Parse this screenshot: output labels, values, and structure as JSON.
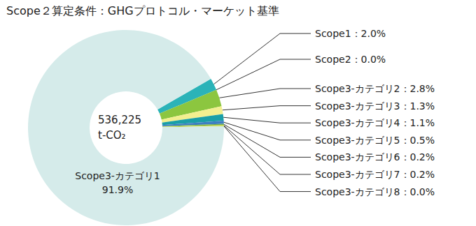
{
  "chart_data": {
    "type": "pie",
    "title": "Scope２算定条件：GHGプロトコル・マーケット基準",
    "center_text": [
      "536,225",
      "t-CO₂"
    ],
    "categories": [
      "Scope1",
      "Scope2",
      "Scope3-カテゴリ2",
      "Scope3-カテゴリ3",
      "Scope3-カテゴリ4",
      "Scope3-カテゴリ5",
      "Scope3-カテゴリ6",
      "Scope3-カテゴリ7",
      "Scope3-カテゴリ8",
      "Scope3-カテゴリ1"
    ],
    "values": [
      2.0,
      0.0,
      2.8,
      1.3,
      1.1,
      0.5,
      0.2,
      0.2,
      0.0,
      91.9
    ],
    "value_labels": [
      "Scope1：2.0%",
      "Scope2：0.0%",
      "Scope3-カテゴリ2：2.8%",
      "Scope3-カテゴリ3：1.3%",
      "Scope3-カテゴリ4：1.1%",
      "Scope3-カテゴリ5：0.5%",
      "Scope3-カテゴリ6：0.2%",
      "Scope3-カテゴリ7：0.2%",
      "Scope3-カテゴリ8：0.0%",
      "Scope3-カテゴリ1\n91.9%"
    ],
    "colors": [
      "#2bb3b8",
      "#5b9bd5",
      "#8cc63f",
      "#f2ef8f",
      "#1a9fa8",
      "#3d7fc1",
      "#6aa84f",
      "#c9d94a",
      "#7fbf7f",
      "#d5ebea"
    ],
    "data_labels": true
  }
}
